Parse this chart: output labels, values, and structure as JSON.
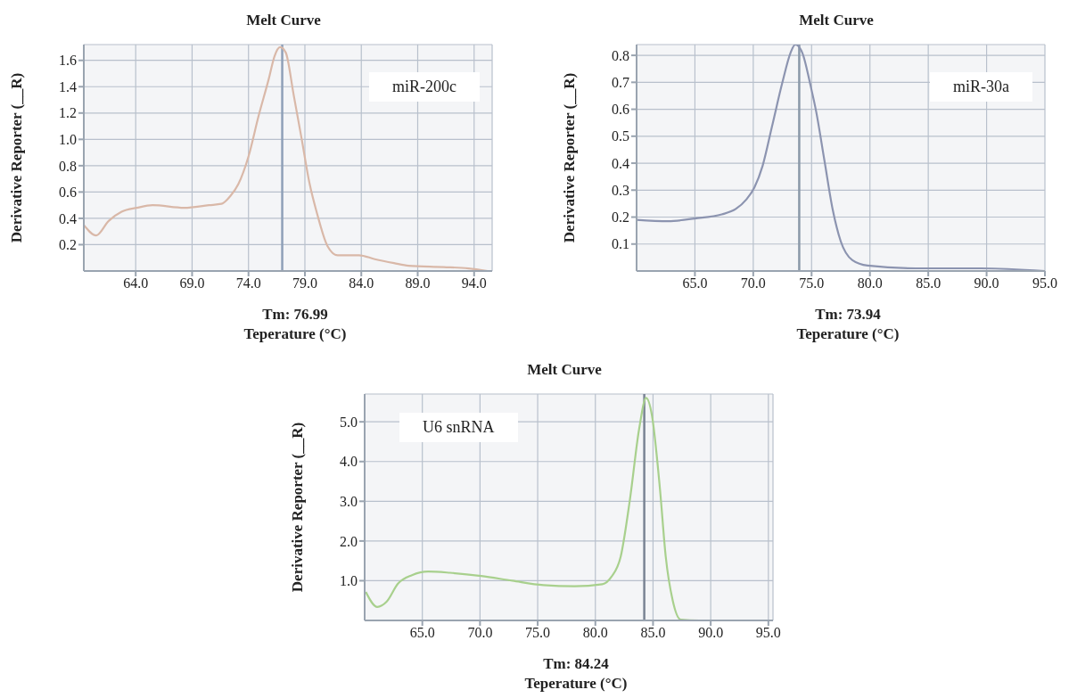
{
  "chart_data": [
    {
      "type": "line",
      "title": "Melt Curve",
      "xlabel": "Teperature (°C)",
      "ylabel": "Derivative Reporter (__R)",
      "annotations": [
        "miR-200c",
        "Tm: 76.99"
      ],
      "grid": true,
      "marker": "none",
      "xlim": [
        59.4,
        95.6
      ],
      "ylim": [
        0,
        1.72
      ],
      "xticks": [
        {
          "value": 64,
          "label": "64.0"
        },
        {
          "value": 69,
          "label": "69.0"
        },
        {
          "value": 74,
          "label": "74.0"
        },
        {
          "value": 79,
          "label": "79.0"
        },
        {
          "value": 84,
          "label": "84.0"
        },
        {
          "value": 89,
          "label": "89.0"
        },
        {
          "value": 94,
          "label": "94.0"
        }
      ],
      "yticks": [
        0.2,
        0.4,
        0.6,
        0.8,
        {
          "value": 1,
          "label": "1.0"
        },
        1.2,
        1.4,
        1.6
      ],
      "ref_lines": [
        {
          "axis": "x",
          "value": 76.99,
          "color": "#8ea0b8"
        }
      ],
      "series": [
        {
          "color": "#d9b8a8",
          "x": [
            59.4,
            60.5,
            61.6,
            62.75,
            64.1,
            65.5,
            68.3,
            70.5,
            71.6,
            72.4,
            73.1,
            74.0,
            74.9,
            75.8,
            76.3,
            76.8,
            77.3,
            78.0,
            78.7,
            79.4,
            80.1,
            81.0,
            81.9,
            83.8,
            85.2,
            86.9,
            88.2,
            91.3,
            93.5,
            95.2
          ],
          "values": [
            0.35,
            0.27,
            0.38,
            0.45,
            0.48,
            0.5,
            0.48,
            0.5,
            0.51,
            0.57,
            0.66,
            0.87,
            1.18,
            1.46,
            1.63,
            1.7,
            1.66,
            1.34,
            1.01,
            0.67,
            0.43,
            0.19,
            0.12,
            0.12,
            0.09,
            0.06,
            0.04,
            0.03,
            0.02,
            0.0
          ]
        }
      ]
    },
    {
      "type": "line",
      "title": "Melt Curve",
      "xlabel": "Teperature (°C)",
      "ylabel": "Derivative Reporter (__R)",
      "annotations": [
        "miR-30a",
        "Tm: 73.94"
      ],
      "grid": true,
      "marker": "none",
      "xlim": [
        60,
        95
      ],
      "ylim": [
        0,
        0.84
      ],
      "xticks": [
        {
          "value": 65,
          "label": "65.0"
        },
        {
          "value": 70,
          "label": "70.0"
        },
        {
          "value": 75,
          "label": "75.0"
        },
        {
          "value": 80,
          "label": "80.0"
        },
        {
          "value": 85,
          "label": "85.0"
        },
        {
          "value": 90,
          "label": "90.0"
        },
        {
          "value": 95,
          "label": "95.0"
        }
      ],
      "yticks": [
        0.1,
        0.2,
        0.3,
        0.4,
        0.5,
        0.6,
        0.7,
        0.8
      ],
      "ref_lines": [
        {
          "axis": "x",
          "value": 73.94,
          "color": "#8a98a8"
        }
      ],
      "series": [
        {
          "color": "#8c94b0",
          "x": [
            60.0,
            62.7,
            65.0,
            67.3,
            68.5,
            69.4,
            70.1,
            70.8,
            71.6,
            72.5,
            73.2,
            73.6,
            74.2,
            74.9,
            75.4,
            76.1,
            76.8,
            77.5,
            78.5,
            79.8,
            83.9,
            89.5,
            95.0
          ],
          "values": [
            0.19,
            0.185,
            0.195,
            0.21,
            0.23,
            0.265,
            0.31,
            0.39,
            0.535,
            0.7,
            0.81,
            0.84,
            0.81,
            0.69,
            0.59,
            0.41,
            0.23,
            0.11,
            0.04,
            0.02,
            0.01,
            0.01,
            0.0
          ]
        }
      ]
    },
    {
      "type": "line",
      "title": "Melt Curve",
      "xlabel": "Teperature (°C)",
      "ylabel": "Derivative Reporter (__R)",
      "annotations": [
        "U6 snRNA",
        "Tm: 84.24"
      ],
      "grid": true,
      "marker": "none",
      "xlim": [
        60,
        95.4
      ],
      "ylim": [
        0,
        5.7
      ],
      "xticks": [
        {
          "value": 65,
          "label": "65.0"
        },
        {
          "value": 70,
          "label": "70.0"
        },
        {
          "value": 75,
          "label": "75.0"
        },
        {
          "value": 80,
          "label": "80.0"
        },
        {
          "value": 85,
          "label": "85.0"
        },
        {
          "value": 90,
          "label": "90.0"
        },
        {
          "value": 95,
          "label": "95.0"
        }
      ],
      "yticks": [
        {
          "value": 1,
          "label": "1.0"
        },
        {
          "value": 2,
          "label": "2.0"
        },
        {
          "value": 3,
          "label": "3.0"
        },
        {
          "value": 4,
          "label": "4.0"
        },
        {
          "value": 5,
          "label": "5.0"
        }
      ],
      "ref_lines": [
        {
          "axis": "x",
          "value": 84.24,
          "color": "#7a8494"
        }
      ],
      "series": [
        {
          "color": "#a8d08d",
          "x": [
            60.1,
            61.1,
            61.9,
            62.9,
            64.1,
            65.5,
            67.4,
            70.1,
            72.8,
            75.5,
            78.2,
            80.6,
            81.4,
            82.2,
            83.0,
            83.8,
            84.4,
            84.9,
            85.6,
            86.1,
            86.7,
            87.4,
            89.0,
            94.4
          ],
          "values": [
            0.72,
            0.34,
            0.47,
            0.93,
            1.14,
            1.23,
            1.2,
            1.12,
            1.0,
            0.89,
            0.86,
            0.91,
            1.1,
            1.61,
            3.05,
            4.83,
            5.6,
            5.17,
            3.31,
            1.61,
            0.51,
            0.02,
            0.0,
            0.0
          ]
        }
      ]
    }
  ]
}
